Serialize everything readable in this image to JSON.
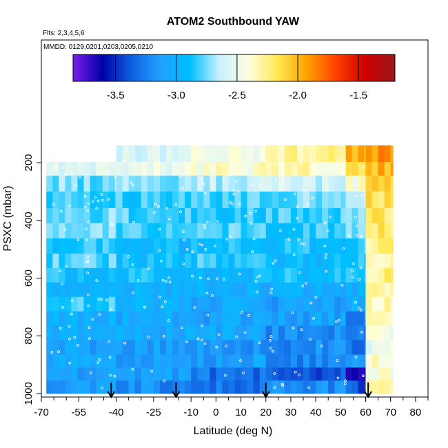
{
  "chart_data": {
    "type": "heatmap",
    "title": "ATOM2 Southbound YAW",
    "subtitle_flights": "Flts: 2,3,4,5,6",
    "subtitle_dates": "MMDD: 0129,0201,0203,0205,0210",
    "xlabel": "Latitude (deg N)",
    "ylabel": "PSXC (mbar)",
    "xlim": [
      -70,
      85
    ],
    "ylim": [
      1010,
      -200
    ],
    "x_ticks_major": [
      -70,
      -55,
      -40,
      -25,
      -10,
      0,
      10,
      20,
      30,
      40,
      50,
      60,
      70,
      80
    ],
    "x_tick_labels": [
      "-70",
      "-55",
      "-40",
      "-25",
      "-10",
      "0",
      "10",
      "20",
      "30",
      "40",
      "50",
      "60",
      "70",
      "80"
    ],
    "x_ticks_minor": [
      -65,
      -60,
      -50,
      -45,
      -35,
      -30,
      -20,
      -15,
      -5,
      5,
      15,
      25,
      35,
      45,
      55,
      65,
      75,
      85
    ],
    "y_ticks": [
      200,
      400,
      600,
      800,
      1000
    ],
    "y_tick_labels": [
      "200",
      "400",
      "600",
      "800",
      "1000"
    ],
    "colorbar": {
      "range": [
        -3.85,
        -1.2
      ],
      "ticks": [
        -3.5,
        -3.0,
        -2.5,
        -2.0,
        -1.5
      ],
      "tick_labels": [
        "-3.5",
        "-3.0",
        "-2.5",
        "-2.0",
        "-1.5"
      ],
      "colors": [
        "#7a1fe8",
        "#0000a8",
        "#1060e0",
        "#20a0ff",
        "#00c0ff",
        "#c8f0ff",
        "#ffffe0",
        "#ffe850",
        "#ffa000",
        "#ff4000",
        "#cc0000",
        "#9a1818"
      ]
    },
    "pressure_levels": [
      175,
      220,
      270,
      330,
      385,
      435,
      490,
      540,
      590,
      640,
      690,
      740,
      790,
      840,
      890,
      930,
      980
    ],
    "sample_profiles": [
      {
        "lat_range": [
          -68,
          -40
        ],
        "values": [
          -2.6,
          -2.55,
          -2.75,
          -2.8,
          -2.75,
          -2.7,
          -2.85,
          -2.8,
          -2.9,
          -2.95,
          -2.85,
          -3.0,
          -3.05,
          -3.1,
          -3.05,
          -3.1,
          -3.15
        ]
      },
      {
        "lat_range": [
          -40,
          -10
        ],
        "values": [
          -2.55,
          -2.5,
          -2.7,
          -2.85,
          -2.8,
          -2.8,
          -2.95,
          -2.9,
          -2.9,
          -3.0,
          -3.0,
          -3.05,
          -3.05,
          -3.1,
          -3.1,
          -3.1,
          -3.2
        ]
      },
      {
        "lat_range": [
          -10,
          20
        ],
        "values": [
          -2.45,
          -2.4,
          -2.65,
          -2.8,
          -2.85,
          -2.8,
          -2.9,
          -2.85,
          -2.95,
          -3.0,
          -3.05,
          -3.1,
          -3.05,
          -3.15,
          -3.1,
          -3.3,
          -3.3
        ]
      },
      {
        "lat_range": [
          20,
          52
        ],
        "values": [
          -2.3,
          -2.35,
          -2.6,
          -2.75,
          -2.8,
          -2.85,
          -2.9,
          -2.95,
          -2.9,
          -3.0,
          -3.1,
          -3.1,
          -3.2,
          -3.2,
          -3.25,
          -3.4,
          -3.2
        ]
      },
      {
        "lat_range": [
          52,
          60
        ],
        "values": [
          -2.0,
          -2.2,
          -2.4,
          -2.6,
          -2.7,
          -2.8,
          -2.8,
          -2.9,
          -2.9,
          -3.0,
          -3.0,
          -3.2,
          -3.3,
          -3.3,
          -3.2,
          -3.6,
          -3.4
        ]
      },
      {
        "lat_range": [
          60,
          71
        ],
        "values": [
          -1.9,
          -2.0,
          -2.1,
          -2.15,
          -2.2,
          -2.2,
          -2.25,
          -2.3,
          -2.25,
          -2.3,
          -2.35,
          -2.4,
          -2.45,
          -2.5,
          -2.4,
          -2.4,
          -2.3
        ]
      }
    ],
    "flight_arrows_lat": [
      -42,
      -16,
      20,
      61
    ]
  }
}
